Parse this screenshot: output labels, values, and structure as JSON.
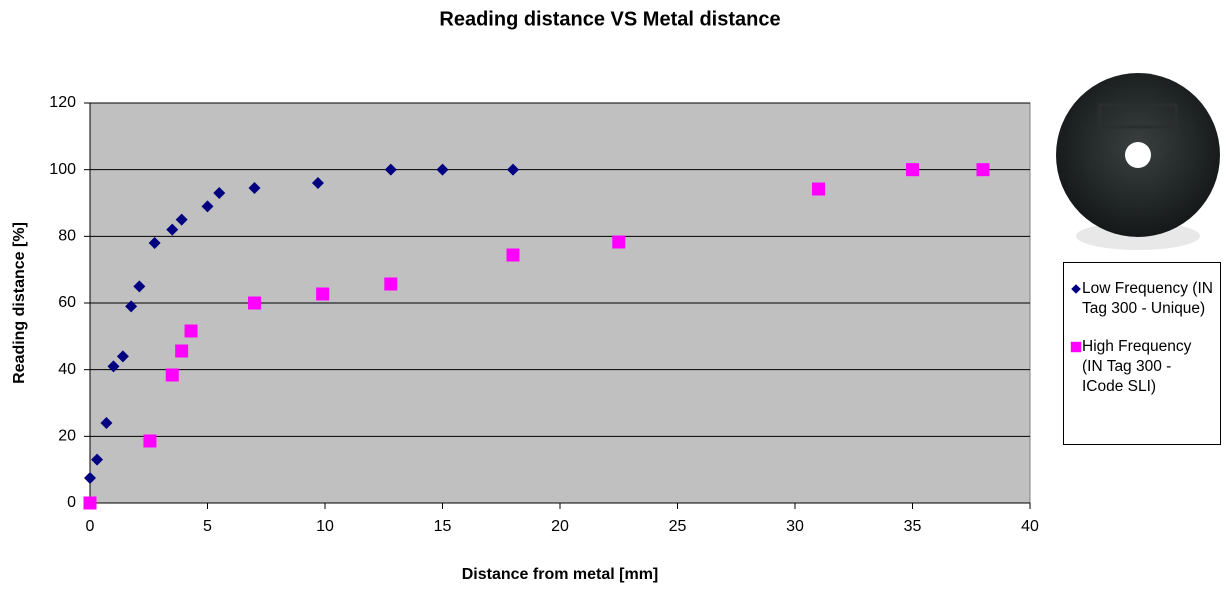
{
  "chart_data": {
    "type": "scatter",
    "title": "Reading distance VS Metal distance",
    "x_label": "Distance from metal [mm]",
    "y_label": "Reading distance [%]",
    "xlim": [
      0,
      40
    ],
    "xticks": [
      0,
      5,
      10,
      15,
      20,
      25,
      30,
      35,
      40
    ],
    "ylim": [
      0,
      120
    ],
    "yticks": [
      0,
      20,
      40,
      60,
      80,
      100,
      120
    ],
    "grid": true,
    "series": [
      {
        "name": "Low Frequency (IN Tag 300 - Unique)",
        "color": "#000080",
        "marker": "diamond",
        "x": [
          0,
          0.3,
          0.7,
          1.0,
          1.4,
          1.75,
          2.1,
          2.75,
          3.5,
          3.9,
          5.0,
          5.5,
          7.0,
          9.7,
          12.8,
          15,
          18
        ],
        "values": [
          7.5,
          13,
          24,
          41,
          44,
          59,
          65,
          78,
          82,
          85,
          89,
          93,
          94.5,
          96,
          100,
          100,
          100
        ]
      },
      {
        "name": "High Frequency (IN Tag 300 - ICode SLI)",
        "color": "#ff00ff",
        "marker": "square",
        "x": [
          0,
          2.55,
          3.5,
          3.9,
          4.3,
          7.0,
          9.9,
          12.8,
          18,
          22.5,
          31,
          35,
          38
        ],
        "values": [
          0,
          18.6,
          38.4,
          45.6,
          51.6,
          60,
          62.7,
          65.7,
          74.4,
          78.3,
          94.2,
          100,
          100
        ]
      }
    ]
  }
}
